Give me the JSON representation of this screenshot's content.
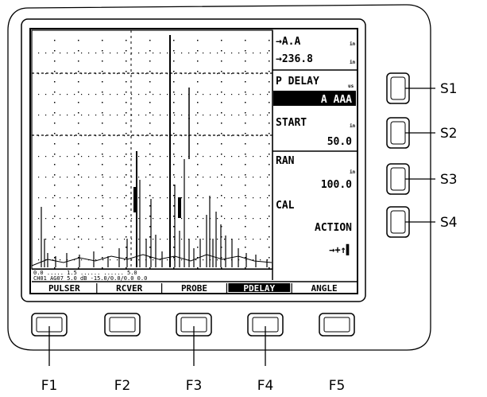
{
  "readouts": {
    "line1": "→A.A",
    "line2": "→236.8",
    "delay_title": "P DELAY",
    "delay_value": "A AAA",
    "start_title": "START",
    "start_value": "50.0",
    "range_title": "RAN",
    "range_value": "100.0",
    "cal_title": "CAL",
    "cal_value": "ACTION",
    "status_icons": "→+↑▌"
  },
  "scale_strip": {
    "row1": "0.0      .....     1.5 ......  ......    5.0",
    "row2": "CH01   AG07   5.0 dB   -15.0/0.0/0.0  0.0"
  },
  "function_tabs": [
    {
      "label": "PULSER",
      "selected": false
    },
    {
      "label": "RCVER",
      "selected": false
    },
    {
      "label": "PROBE",
      "selected": false
    },
    {
      "label": "PDELAY",
      "selected": true
    },
    {
      "label": "ANGLE",
      "selected": false
    }
  ],
  "side_keys": [
    {
      "label": "S1"
    },
    {
      "label": "S2"
    },
    {
      "label": "S3"
    },
    {
      "label": "S4"
    }
  ],
  "function_keys": [
    {
      "label": "F1"
    },
    {
      "label": "F2"
    },
    {
      "label": "F3"
    },
    {
      "label": "F4"
    },
    {
      "label": "F5"
    }
  ]
}
